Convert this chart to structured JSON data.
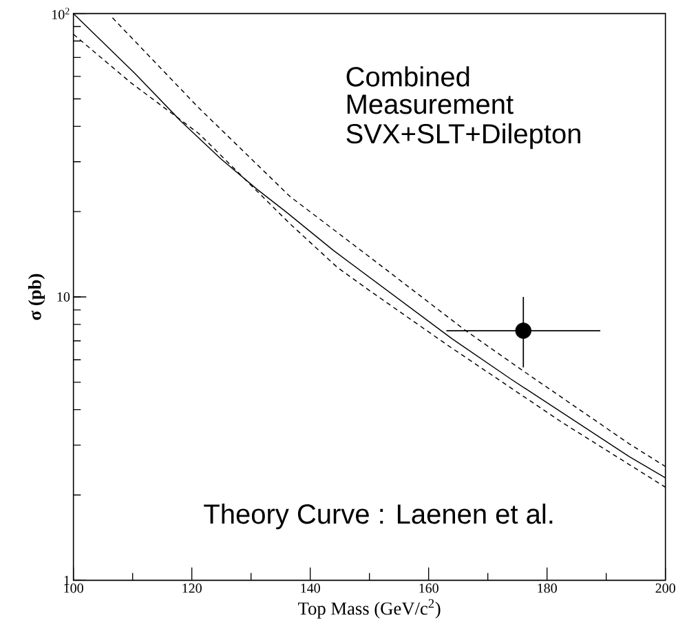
{
  "chart_data": {
    "type": "line",
    "xlabel": "Top Mass (GeV/c$^{2}$)",
    "ylabel": "σ (pb)",
    "log": "y",
    "xlim": [
      100,
      200
    ],
    "ylim": [
      1,
      100
    ],
    "xticks": [
      100,
      120,
      140,
      160,
      180,
      200
    ],
    "yticks": [
      1,
      10,
      {
        "value": 100,
        "label": "10$^{2}$"
      }
    ],
    "series": [
      {
        "color": "#000000",
        "line_style": "solid",
        "marker": "none",
        "x": [
          100,
          110.4,
          118.1,
          125.0,
          131.0,
          136.0,
          143.9,
          163.9,
          173.9,
          193.9,
          200
        ],
        "values": [
          100,
          61.4,
          41.8,
          30.6,
          24.0,
          19.9,
          14.6,
          7.13,
          5.13,
          2.73,
          2.3
        ]
      },
      {
        "color": "#000000",
        "line_style": "dashed",
        "marker": "none",
        "x": [
          106.6,
          121.2,
          136.6,
          150.1,
          166.2,
          176.2,
          193.9,
          200
        ],
        "values": [
          96.6,
          46.4,
          22.6,
          13.8,
          7.62,
          5.44,
          3.03,
          2.52
        ]
      },
      {
        "color": "#000000",
        "line_style": "dashed",
        "marker": "none",
        "x": [
          100,
          109.7,
          121.2,
          136.6,
          144.6,
          150.1,
          163.5,
          182.7,
          200
        ],
        "values": [
          84.5,
          57.0,
          37.7,
          18.1,
          12.7,
          10.5,
          6.69,
          3.59,
          2.13
        ]
      },
      {
        "type": "scatter",
        "color": "#000000",
        "marker": "circle",
        "x": [
          176.0
        ],
        "values": [
          7.6
        ],
        "errors": [
          [
            5.64,
            10.0
          ]
        ],
        "xerrors": [
          [
            163.0,
            189.0
          ]
        ]
      }
    ],
    "annotations": [
      "Combined",
      "Measurement",
      "SVX+SLT+Dilepton",
      "Theory Curve : Laenen et al."
    ]
  }
}
